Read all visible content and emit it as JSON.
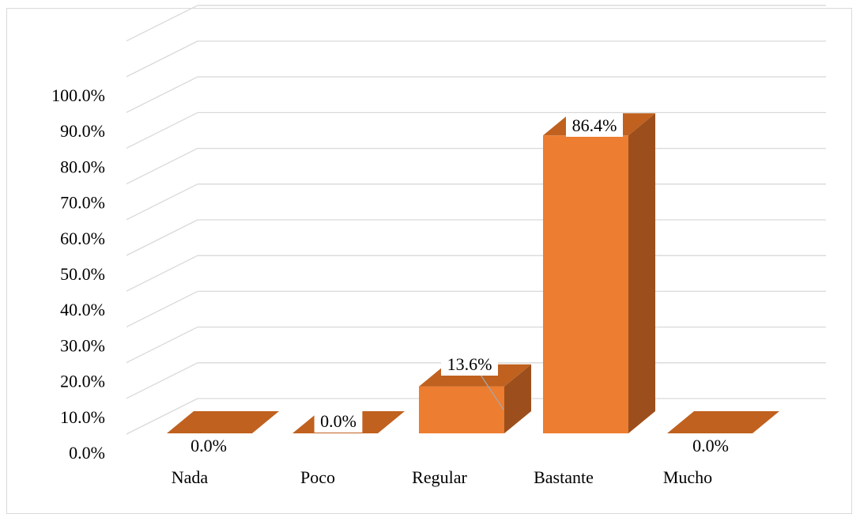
{
  "chart_data": {
    "type": "bar",
    "categories": [
      "Nada",
      "Poco",
      "Regular",
      "Bastante",
      "Mucho"
    ],
    "values": [
      0.0,
      0.0,
      13.6,
      86.4,
      0.0
    ],
    "data_labels": [
      "0.0%",
      "0.0%",
      "13.6%",
      "86.4%",
      "0.0%"
    ],
    "yticks": [
      "0.0%",
      "10.0%",
      "20.0%",
      "30.0%",
      "40.0%",
      "50.0%",
      "60.0%",
      "70.0%",
      "80.0%",
      "90.0%",
      "100.0%"
    ],
    "ylim": [
      0,
      100
    ],
    "grid": true,
    "three_d": true,
    "colors": {
      "front": "#ED7D31",
      "side": "#9C4F1C",
      "top": "#C0611F",
      "grid": "#d9d9d9"
    }
  }
}
